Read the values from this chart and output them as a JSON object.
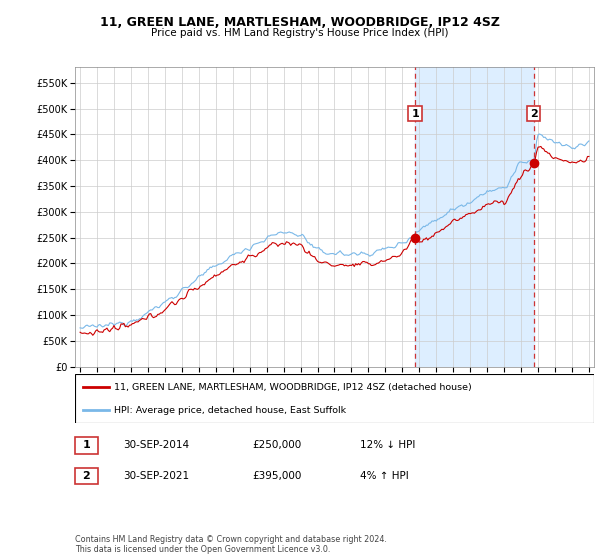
{
  "title": "11, GREEN LANE, MARTLESHAM, WOODBRIDGE, IP12 4SZ",
  "subtitle": "Price paid vs. HM Land Registry's House Price Index (HPI)",
  "legend_line1": "11, GREEN LANE, MARTLESHAM, WOODBRIDGE, IP12 4SZ (detached house)",
  "legend_line2": "HPI: Average price, detached house, East Suffolk",
  "transaction1_date": "30-SEP-2014",
  "transaction1_price": "£250,000",
  "transaction1_hpi": "12% ↓ HPI",
  "transaction2_date": "30-SEP-2021",
  "transaction2_price": "£395,000",
  "transaction2_hpi": "4% ↑ HPI",
  "footnote": "Contains HM Land Registry data © Crown copyright and database right 2024.\nThis data is licensed under the Open Government Licence v3.0.",
  "hpi_color": "#7ab8e8",
  "price_color": "#cc0000",
  "vline_color": "#cc3333",
  "shade_color": "#ddeeff",
  "ylim_min": 0,
  "ylim_max": 580000,
  "ytick_step": 50000,
  "x_start_year": 1995,
  "x_end_year": 2025,
  "transaction1_year": 2014.75,
  "transaction2_year": 2021.75
}
